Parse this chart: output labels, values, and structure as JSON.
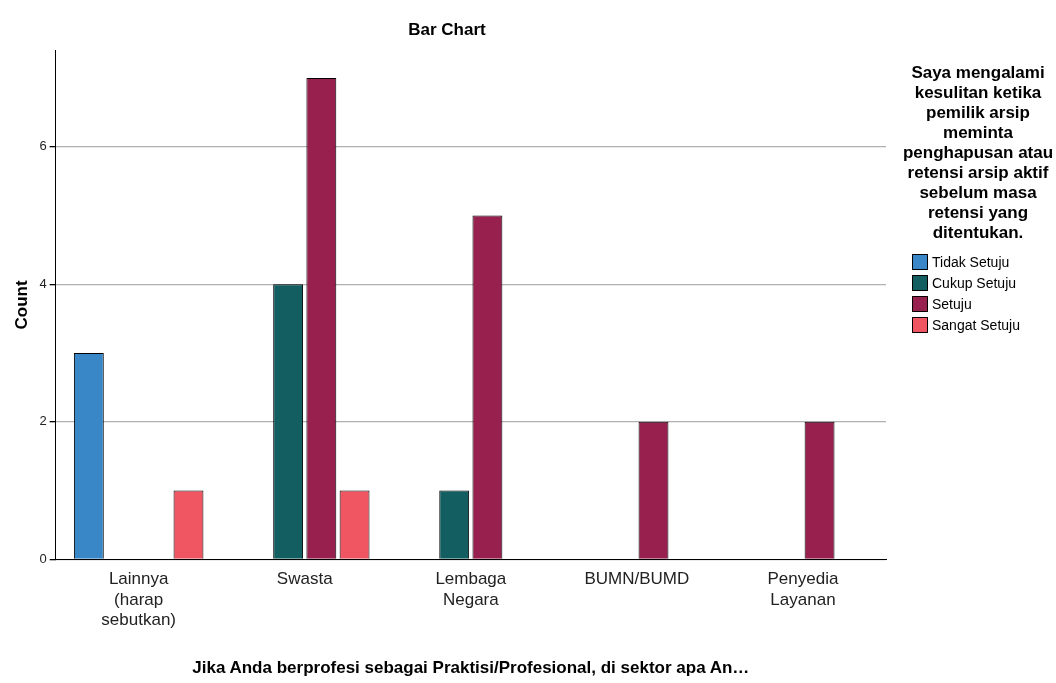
{
  "chart_data": {
    "type": "bar",
    "title": "Bar Chart",
    "xlabel": "Jika Anda berprofesi sebagai Praktisi/Profesional, di sektor apa An…",
    "ylabel": "Count",
    "legend_title": "Saya mengalami kesulitan ketika pemilik arsip meminta penghapusan atau retensi arsip aktif sebelum masa retensi yang ditentukan.",
    "categories": [
      "Lainnya (harap sebutkan)",
      "Swasta",
      "Lembaga Negara",
      "BUMN/BUMD",
      "Penyedia Layanan"
    ],
    "series": [
      {
        "name": "Tidak Setuju",
        "color": "#3a87c8",
        "values": [
          3,
          null,
          null,
          null,
          null
        ]
      },
      {
        "name": "Cukup Setuju",
        "color": "#125e60",
        "values": [
          null,
          4,
          1,
          null,
          null
        ]
      },
      {
        "name": "Setuju",
        "color": "#98204f",
        "values": [
          null,
          7,
          5,
          2,
          2
        ]
      },
      {
        "name": "Sangat Setuju",
        "color": "#ef5662",
        "values": [
          1,
          1,
          null,
          null,
          null
        ]
      }
    ],
    "ylim": [
      0,
      7.4
    ],
    "yticks": [
      0,
      2,
      4,
      6
    ],
    "grid": "y",
    "legend": "right"
  }
}
